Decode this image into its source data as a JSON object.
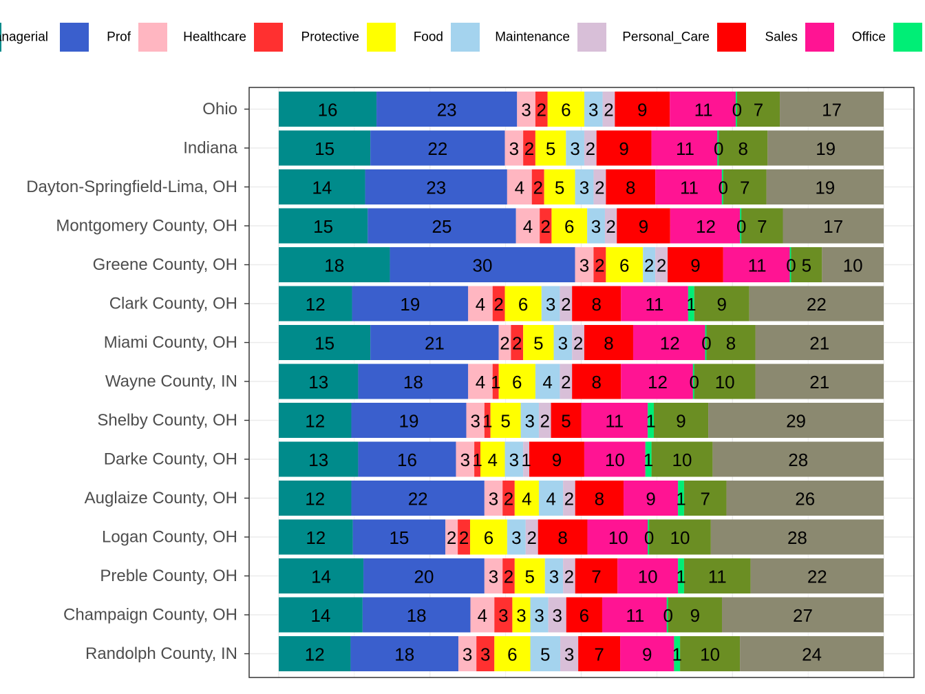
{
  "chart_data": {
    "type": "bar",
    "orientation": "horizontal",
    "stacked": true,
    "legend_position": "top",
    "grid": true,
    "xlim": [
      0,
      100
    ],
    "categories": [
      "Ohio",
      "Indiana",
      "Dayton-Springfield-Lima, OH",
      "Montgomery County, OH",
      "Greene County, OH",
      "Clark County, OH",
      "Miami County, OH",
      "Wayne County, IN",
      "Shelby County, OH",
      "Darke County, OH",
      "Auglaize County, OH",
      "Logan County, OH",
      "Preble County, OH",
      "Champaign County, OH",
      "Randolph County, IN"
    ],
    "series": [
      {
        "name": "Managerial",
        "legend_text": "anagerial",
        "color": "#008B8B",
        "values": [
          16,
          15,
          14,
          15,
          18,
          12,
          15,
          13,
          12,
          13,
          12,
          12,
          14,
          14,
          12
        ]
      },
      {
        "name": "Prof",
        "color": "#3A5FCD",
        "values": [
          23,
          22,
          23,
          25,
          30,
          19,
          21,
          18,
          19,
          16,
          22,
          15,
          20,
          18,
          18
        ]
      },
      {
        "name": "Healthcare",
        "color": "#FFB6C1",
        "values": [
          3,
          3,
          4,
          4,
          3,
          4,
          2,
          4,
          3,
          3,
          3,
          2,
          3,
          4,
          3
        ]
      },
      {
        "name": "Protective",
        "color": "#FF3030",
        "values": [
          2,
          2,
          2,
          2,
          2,
          2,
          2,
          1,
          1,
          1,
          2,
          2,
          2,
          3,
          3
        ]
      },
      {
        "name": "Food",
        "color": "#FFFF00",
        "values": [
          6,
          5,
          5,
          6,
          6,
          6,
          5,
          6,
          5,
          4,
          4,
          6,
          5,
          3,
          6
        ]
      },
      {
        "name": "Maintenance",
        "color": "#A4D3EE",
        "values": [
          3,
          3,
          3,
          3,
          2,
          3,
          3,
          4,
          3,
          3,
          4,
          3,
          3,
          3,
          5
        ]
      },
      {
        "name": "Personal_Care",
        "color": "#D8BFD8",
        "values": [
          2,
          2,
          2,
          2,
          2,
          2,
          2,
          2,
          2,
          1,
          2,
          2,
          2,
          3,
          3
        ]
      },
      {
        "name": "Sales",
        "color": "#FF0000",
        "values": [
          9,
          9,
          8,
          9,
          9,
          8,
          8,
          8,
          5,
          9,
          8,
          8,
          7,
          6,
          7
        ]
      },
      {
        "name": "Office",
        "color": "#FF1493",
        "values": [
          11,
          11,
          11,
          12,
          11,
          11,
          12,
          12,
          11,
          10,
          9,
          10,
          10,
          11,
          9
        ]
      },
      {
        "name": "",
        "color": "#00EE76",
        "values": [
          0,
          0,
          0,
          0,
          0,
          1,
          0,
          0,
          1,
          1,
          1,
          0,
          1,
          0,
          1
        ]
      },
      {
        "name": "",
        "color": "#6B8E23",
        "values": [
          7,
          8,
          7,
          7,
          5,
          9,
          8,
          10,
          9,
          10,
          7,
          10,
          11,
          9,
          10
        ]
      },
      {
        "name": "",
        "color": "#8B8970",
        "values": [
          17,
          19,
          19,
          17,
          10,
          22,
          21,
          21,
          29,
          28,
          26,
          28,
          22,
          27,
          24
        ]
      }
    ]
  }
}
